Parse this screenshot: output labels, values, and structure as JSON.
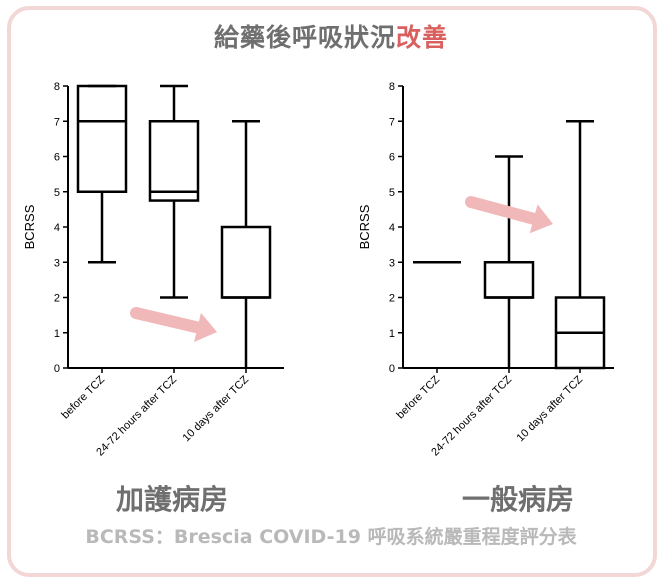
{
  "title": {
    "main": "給藥後呼吸狀況",
    "accent": "改善"
  },
  "footnote": "BCRSS：Brescia COVID-19 呼吸系統嚴重程度評分表",
  "colors": {
    "accent": "#d9605f",
    "arrow": "#f0b8b8",
    "frame": "#f3d6d6",
    "text_gray": "#6f6f6f"
  },
  "chart_data": [
    {
      "type": "box",
      "panel_label": "加護病房",
      "ylabel": "BCRSS",
      "ylim": [
        0,
        8
      ],
      "yticks": [
        "0",
        "1",
        "2",
        "3",
        "4",
        "5",
        "6",
        "7",
        "8"
      ],
      "categories": [
        "before TCZ",
        "24-72 hours after TCZ",
        "10 days after TCZ"
      ],
      "boxes": [
        {
          "min": 3,
          "q1": 5,
          "median": 7,
          "q3": 8,
          "max": 8
        },
        {
          "min": 2,
          "q1": 4.75,
          "median": 5,
          "q3": 7,
          "max": 8
        },
        {
          "min": 0,
          "q1": 2,
          "median": 2,
          "q3": 4,
          "max": 7
        }
      ]
    },
    {
      "type": "box",
      "panel_label": "一般病房",
      "ylabel": "BCRSS",
      "ylim": [
        0,
        8
      ],
      "yticks": [
        "0",
        "1",
        "2",
        "3",
        "4",
        "5",
        "6",
        "7",
        "8"
      ],
      "categories": [
        "before TCZ",
        "24-72 hours after TCZ",
        "10 days after TCZ"
      ],
      "boxes": [
        {
          "min": 3,
          "q1": 3,
          "median": 3,
          "q3": 3,
          "max": 3
        },
        {
          "min": 0,
          "q1": 2,
          "median": 2,
          "q3": 3,
          "max": 6
        },
        {
          "min": 0,
          "q1": 0,
          "median": 1,
          "q3": 2,
          "max": 7
        }
      ]
    }
  ]
}
